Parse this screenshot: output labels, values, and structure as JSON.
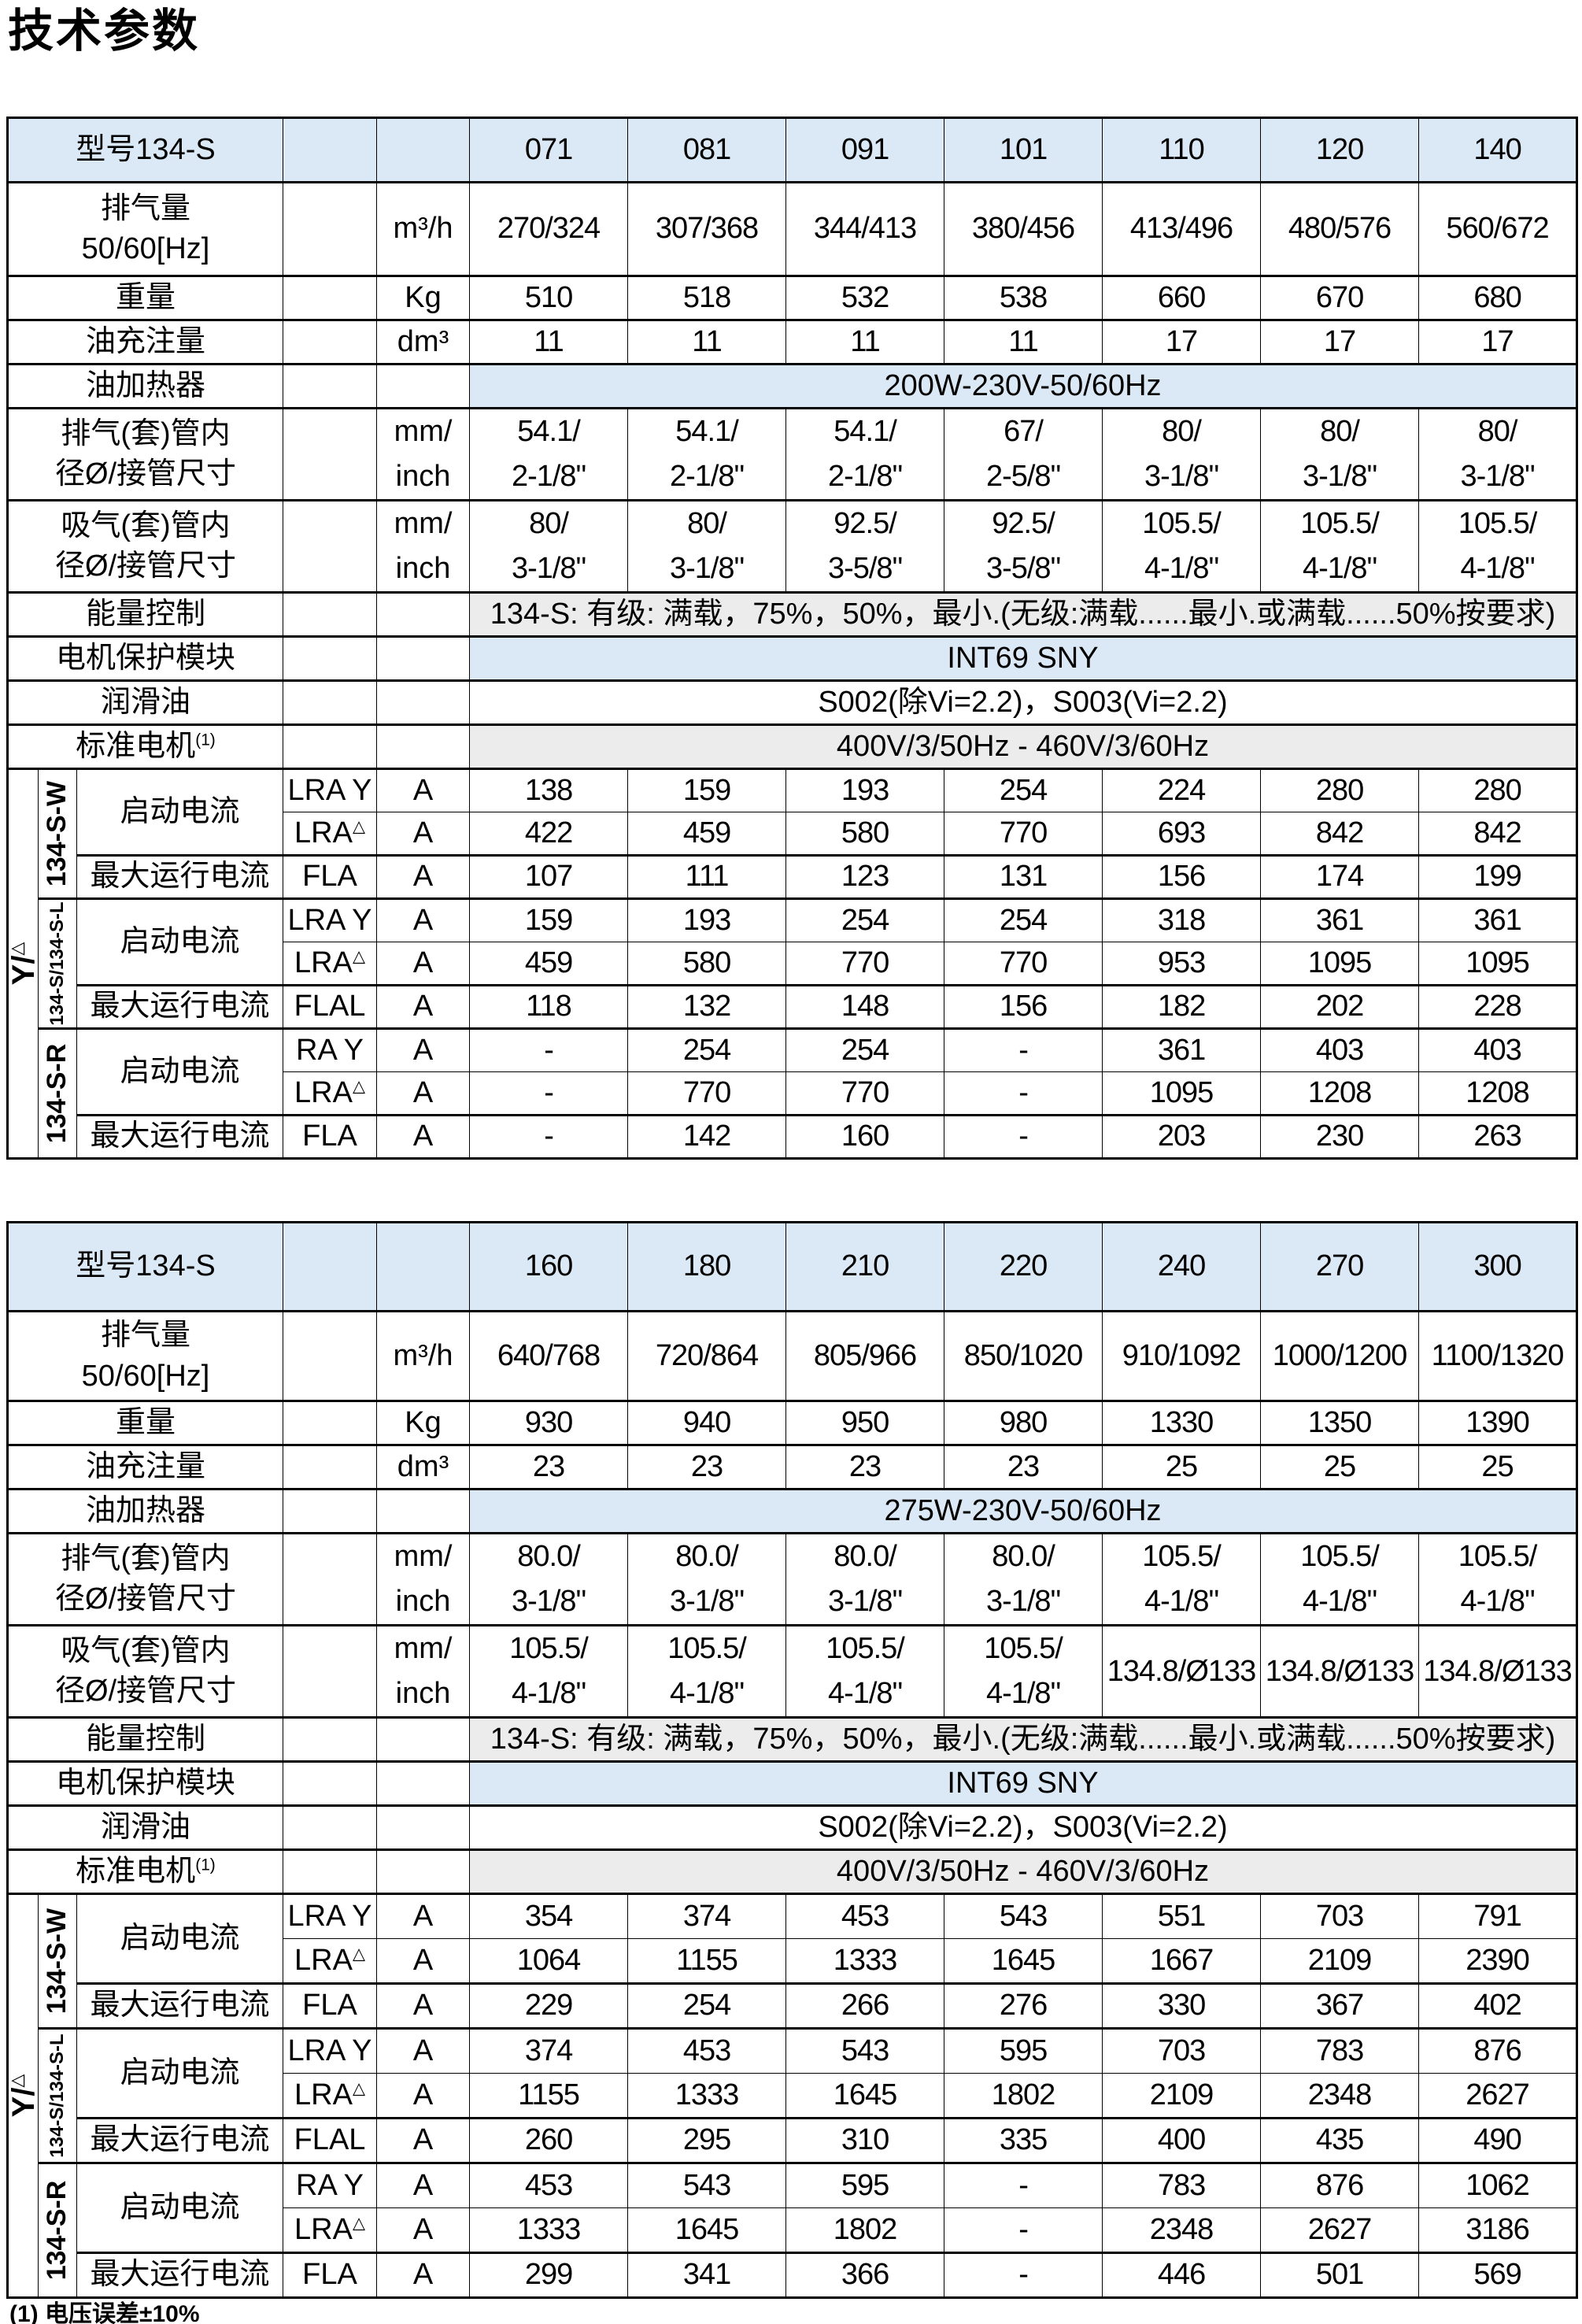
{
  "page": {
    "title": "技术参数",
    "footnote": "(1) 电压误差±10%"
  },
  "colors": {
    "header_blue": "#dbe9f6",
    "row_gray": "#ececec",
    "row_white": "#ffffff",
    "border": "#000000"
  },
  "tables": [
    {
      "model_label": "型号134-S",
      "models": [
        "071",
        "081",
        "091",
        "101",
        "110",
        "120",
        "140"
      ],
      "spec_rows": [
        {
          "id": "displacement",
          "label_lines": [
            "排气量",
            "50/60[Hz]"
          ],
          "unit": "m³/h",
          "values": [
            "270/324",
            "307/368",
            "344/413",
            "380/456",
            "413/496",
            "480/576",
            "560/672"
          ]
        },
        {
          "id": "weight",
          "label_lines": [
            "重量"
          ],
          "unit": "Kg",
          "values": [
            "510",
            "518",
            "532",
            "538",
            "660",
            "670",
            "680"
          ]
        },
        {
          "id": "oil_charge",
          "label_lines": [
            "油充注量"
          ],
          "unit": "dm³",
          "values": [
            "11",
            "11",
            "11",
            "11",
            "17",
            "17",
            "17"
          ]
        },
        {
          "id": "oil_heater",
          "label_lines": [
            "油加热器"
          ],
          "merged_value": "200W-230V-50/60Hz",
          "bg": "blue"
        },
        {
          "id": "discharge_pipe",
          "label_lines": [
            "排气(套)管内",
            "径Ø/接管尺寸"
          ],
          "unit_lines": [
            "mm/",
            "inch"
          ],
          "values_lines": [
            [
              "54.1/",
              "2-1/8\""
            ],
            [
              "54.1/",
              "2-1/8\""
            ],
            [
              "54.1/",
              "2-1/8\""
            ],
            [
              "67/",
              "2-5/8\""
            ],
            [
              "80/",
              "3-1/8\""
            ],
            [
              "80/",
              "3-1/8\""
            ],
            [
              "80/",
              "3-1/8\""
            ]
          ]
        },
        {
          "id": "suction_pipe",
          "label_lines": [
            "吸气(套)管内",
            "径Ø/接管尺寸"
          ],
          "unit_lines": [
            "mm/",
            "inch"
          ],
          "values_lines": [
            [
              "80/",
              "3-1/8\""
            ],
            [
              "80/",
              "3-1/8\""
            ],
            [
              "92.5/",
              "3-5/8\""
            ],
            [
              "92.5/",
              "3-5/8\""
            ],
            [
              "105.5/",
              "4-1/8\""
            ],
            [
              "105.5/",
              "4-1/8\""
            ],
            [
              "105.5/",
              "4-1/8\""
            ]
          ]
        },
        {
          "id": "energy_control",
          "label_lines": [
            "能量控制"
          ],
          "merged_value": "134-S: 有级: 满载，75%，50%，最小.(无级:满载......最小.或满载......50%按要求)",
          "bg": "gray"
        },
        {
          "id": "motor_protection",
          "label_lines": [
            "电机保护模块"
          ],
          "merged_value": "INT69 SNY",
          "bg": "blue"
        },
        {
          "id": "lubricant",
          "label_lines": [
            "润滑油"
          ],
          "merged_value": "S002(除Vi=2.2)，S003(Vi=2.2)",
          "bg": "white"
        },
        {
          "id": "standard_motor",
          "label_lines": [
            "标准电机"
          ],
          "label_sup": "(1)",
          "merged_value": "400V/3/50Hz - 460V/3/60Hz",
          "bg": "gray"
        }
      ],
      "current_section": {
        "ydelta": "Y/",
        "ydelta_sup": "△",
        "start_label": "启动电流",
        "max_label": "最大运行电流",
        "groups": [
          {
            "model": "134-S-W",
            "small": false,
            "rows": [
              {
                "label": "启动电流",
                "code": "LRA Y",
                "unit": "A",
                "values": [
                  "138",
                  "159",
                  "193",
                  "254",
                  "224",
                  "280",
                  "280"
                ]
              },
              {
                "code": "LRA",
                "code_sup": "△",
                "unit": "A",
                "values": [
                  "422",
                  "459",
                  "580",
                  "770",
                  "693",
                  "842",
                  "842"
                ]
              },
              {
                "label": "最大运行电流",
                "code": "FLA",
                "unit": "A",
                "values": [
                  "107",
                  "111",
                  "123",
                  "131",
                  "156",
                  "174",
                  "199"
                ]
              }
            ]
          },
          {
            "model": "134-S/134-S-L",
            "small": true,
            "rows": [
              {
                "label": "启动电流",
                "code": "LRA Y",
                "unit": "A",
                "values": [
                  "159",
                  "193",
                  "254",
                  "254",
                  "318",
                  "361",
                  "361"
                ]
              },
              {
                "code": "LRA",
                "code_sup": "△",
                "unit": "A",
                "values": [
                  "459",
                  "580",
                  "770",
                  "770",
                  "953",
                  "1095",
                  "1095"
                ]
              },
              {
                "label": "最大运行电流",
                "code": "FLAL",
                "unit": "A",
                "values": [
                  "118",
                  "132",
                  "148",
                  "156",
                  "182",
                  "202",
                  "228"
                ]
              }
            ]
          },
          {
            "model": "134-S-R",
            "small": false,
            "rows": [
              {
                "label": "启动电流",
                "code": "RA Y",
                "unit": "A",
                "values": [
                  "-",
                  "254",
                  "254",
                  "-",
                  "361",
                  "403",
                  "403"
                ]
              },
              {
                "code": "LRA",
                "code_sup": "△",
                "unit": "A",
                "values": [
                  "-",
                  "770",
                  "770",
                  "-",
                  "1095",
                  "1208",
                  "1208"
                ]
              },
              {
                "label": "最大运行电流",
                "code": "FLA",
                "unit": "A",
                "values": [
                  "-",
                  "142",
                  "160",
                  "-",
                  "203",
                  "230",
                  "263"
                ]
              }
            ]
          }
        ]
      }
    },
    {
      "model_label": "型号134-S",
      "models": [
        "160",
        "180",
        "210",
        "220",
        "240",
        "270",
        "300"
      ],
      "spec_rows": [
        {
          "id": "displacement",
          "label_lines": [
            "排气量",
            "50/60[Hz]"
          ],
          "unit": "m³/h",
          "values": [
            "640/768",
            "720/864",
            "805/966",
            "850/1020",
            "910/1092",
            "1000/1200",
            "1100/1320"
          ]
        },
        {
          "id": "weight",
          "label_lines": [
            "重量"
          ],
          "unit": "Kg",
          "values": [
            "930",
            "940",
            "950",
            "980",
            "1330",
            "1350",
            "1390"
          ]
        },
        {
          "id": "oil_charge",
          "label_lines": [
            "油充注量"
          ],
          "unit": "dm³",
          "values": [
            "23",
            "23",
            "23",
            "23",
            "25",
            "25",
            "25"
          ]
        },
        {
          "id": "oil_heater",
          "label_lines": [
            "油加热器"
          ],
          "merged_value": "275W-230V-50/60Hz",
          "bg": "blue"
        },
        {
          "id": "discharge_pipe",
          "label_lines": [
            "排气(套)管内",
            "径Ø/接管尺寸"
          ],
          "unit_lines": [
            "mm/",
            "inch"
          ],
          "values_lines": [
            [
              "80.0/",
              "3-1/8\""
            ],
            [
              "80.0/",
              "3-1/8\""
            ],
            [
              "80.0/",
              "3-1/8\""
            ],
            [
              "80.0/",
              "3-1/8\""
            ],
            [
              "105.5/",
              "4-1/8\""
            ],
            [
              "105.5/",
              "4-1/8\""
            ],
            [
              "105.5/",
              "4-1/8\""
            ]
          ]
        },
        {
          "id": "suction_pipe",
          "label_lines": [
            "吸气(套)管内",
            "径Ø/接管尺寸"
          ],
          "unit_lines": [
            "mm/",
            "inch"
          ],
          "values_lines": [
            [
              "105.5/",
              "4-1/8\""
            ],
            [
              "105.5/",
              "4-1/8\""
            ],
            [
              "105.5/",
              "4-1/8\""
            ],
            [
              "105.5/",
              "4-1/8\""
            ],
            [
              "134.8/Ø133"
            ],
            [
              "134.8/Ø133"
            ],
            [
              "134.8/Ø133"
            ]
          ]
        },
        {
          "id": "energy_control",
          "label_lines": [
            "能量控制"
          ],
          "merged_value": "134-S: 有级: 满载，75%，50%，最小.(无级:满载......最小.或满载......50%按要求)",
          "bg": "gray"
        },
        {
          "id": "motor_protection",
          "label_lines": [
            "电机保护模块"
          ],
          "merged_value": "INT69 SNY",
          "bg": "blue"
        },
        {
          "id": "lubricant",
          "label_lines": [
            "润滑油"
          ],
          "merged_value": "S002(除Vi=2.2)，S003(Vi=2.2)",
          "bg": "white"
        },
        {
          "id": "standard_motor",
          "label_lines": [
            "标准电机"
          ],
          "label_sup": "(1)",
          "merged_value": "400V/3/50Hz - 460V/3/60Hz",
          "bg": "gray"
        }
      ],
      "current_section": {
        "ydelta": "Y/",
        "ydelta_sup": "△",
        "start_label": "启动电流",
        "max_label": "最大运行电流",
        "groups": [
          {
            "model": "134-S-W",
            "small": false,
            "rows": [
              {
                "label": "启动电流",
                "code": "LRA Y",
                "unit": "A",
                "values": [
                  "354",
                  "374",
                  "453",
                  "543",
                  "551",
                  "703",
                  "791"
                ]
              },
              {
                "code": "LRA",
                "code_sup": "△",
                "unit": "A",
                "values": [
                  "1064",
                  "1155",
                  "1333",
                  "1645",
                  "1667",
                  "2109",
                  "2390"
                ]
              },
              {
                "label": "最大运行电流",
                "code": "FLA",
                "unit": "A",
                "values": [
                  "229",
                  "254",
                  "266",
                  "276",
                  "330",
                  "367",
                  "402"
                ]
              }
            ]
          },
          {
            "model": "134-S/134-S-L",
            "small": true,
            "rows": [
              {
                "label": "启动电流",
                "code": "LRA Y",
                "unit": "A",
                "values": [
                  "374",
                  "453",
                  "543",
                  "595",
                  "703",
                  "783",
                  "876"
                ]
              },
              {
                "code": "LRA",
                "code_sup": "△",
                "unit": "A",
                "values": [
                  "1155",
                  "1333",
                  "1645",
                  "1802",
                  "2109",
                  "2348",
                  "2627"
                ]
              },
              {
                "label": "最大运行电流",
                "code": "FLAL",
                "unit": "A",
                "values": [
                  "260",
                  "295",
                  "310",
                  "335",
                  "400",
                  "435",
                  "490"
                ]
              }
            ]
          },
          {
            "model": "134-S-R",
            "small": false,
            "rows": [
              {
                "label": "启动电流",
                "code": "RA Y",
                "unit": "A",
                "values": [
                  "453",
                  "543",
                  "595",
                  "-",
                  "783",
                  "876",
                  "1062"
                ]
              },
              {
                "code": "LRA",
                "code_sup": "△",
                "unit": "A",
                "values": [
                  "1333",
                  "1645",
                  "1802",
                  "-",
                  "2348",
                  "2627",
                  "3186"
                ]
              },
              {
                "label": "最大运行电流",
                "code": "FLA",
                "unit": "A",
                "values": [
                  "299",
                  "341",
                  "366",
                  "-",
                  "446",
                  "501",
                  "569"
                ]
              }
            ]
          }
        ]
      }
    }
  ]
}
